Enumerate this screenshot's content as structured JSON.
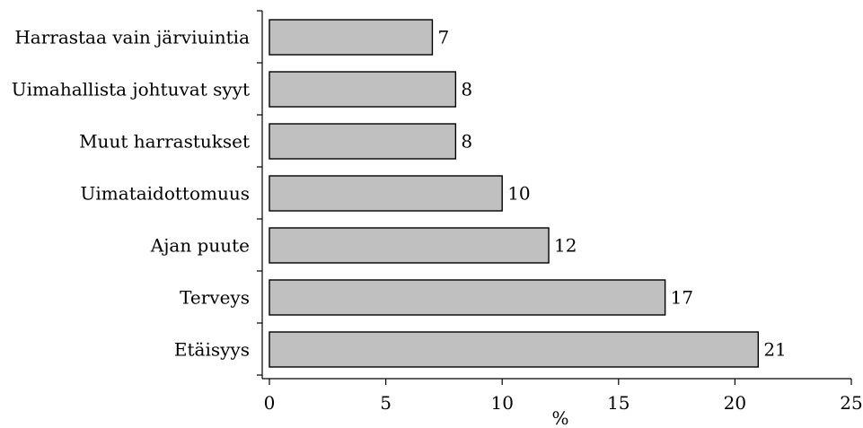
{
  "chart_data": {
    "type": "bar",
    "orientation": "horizontal",
    "categories": [
      "Harrastaa vain järviuintia",
      "Uimahallista johtuvat syyt",
      "Muut harrastukset",
      "Uimataidottomuus",
      "Ajan puute",
      "Terveys",
      "Etäisyys"
    ],
    "values": [
      7,
      8,
      8,
      10,
      12,
      17,
      21
    ],
    "value_labels": [
      "7",
      "8",
      "8",
      "10",
      "12",
      "17",
      "21"
    ],
    "xlabel": "%",
    "xlim": [
      0,
      25
    ],
    "xticks": [
      0,
      5,
      10,
      15,
      20,
      25
    ],
    "grid": false,
    "bar_color": "#c0c0c0"
  }
}
